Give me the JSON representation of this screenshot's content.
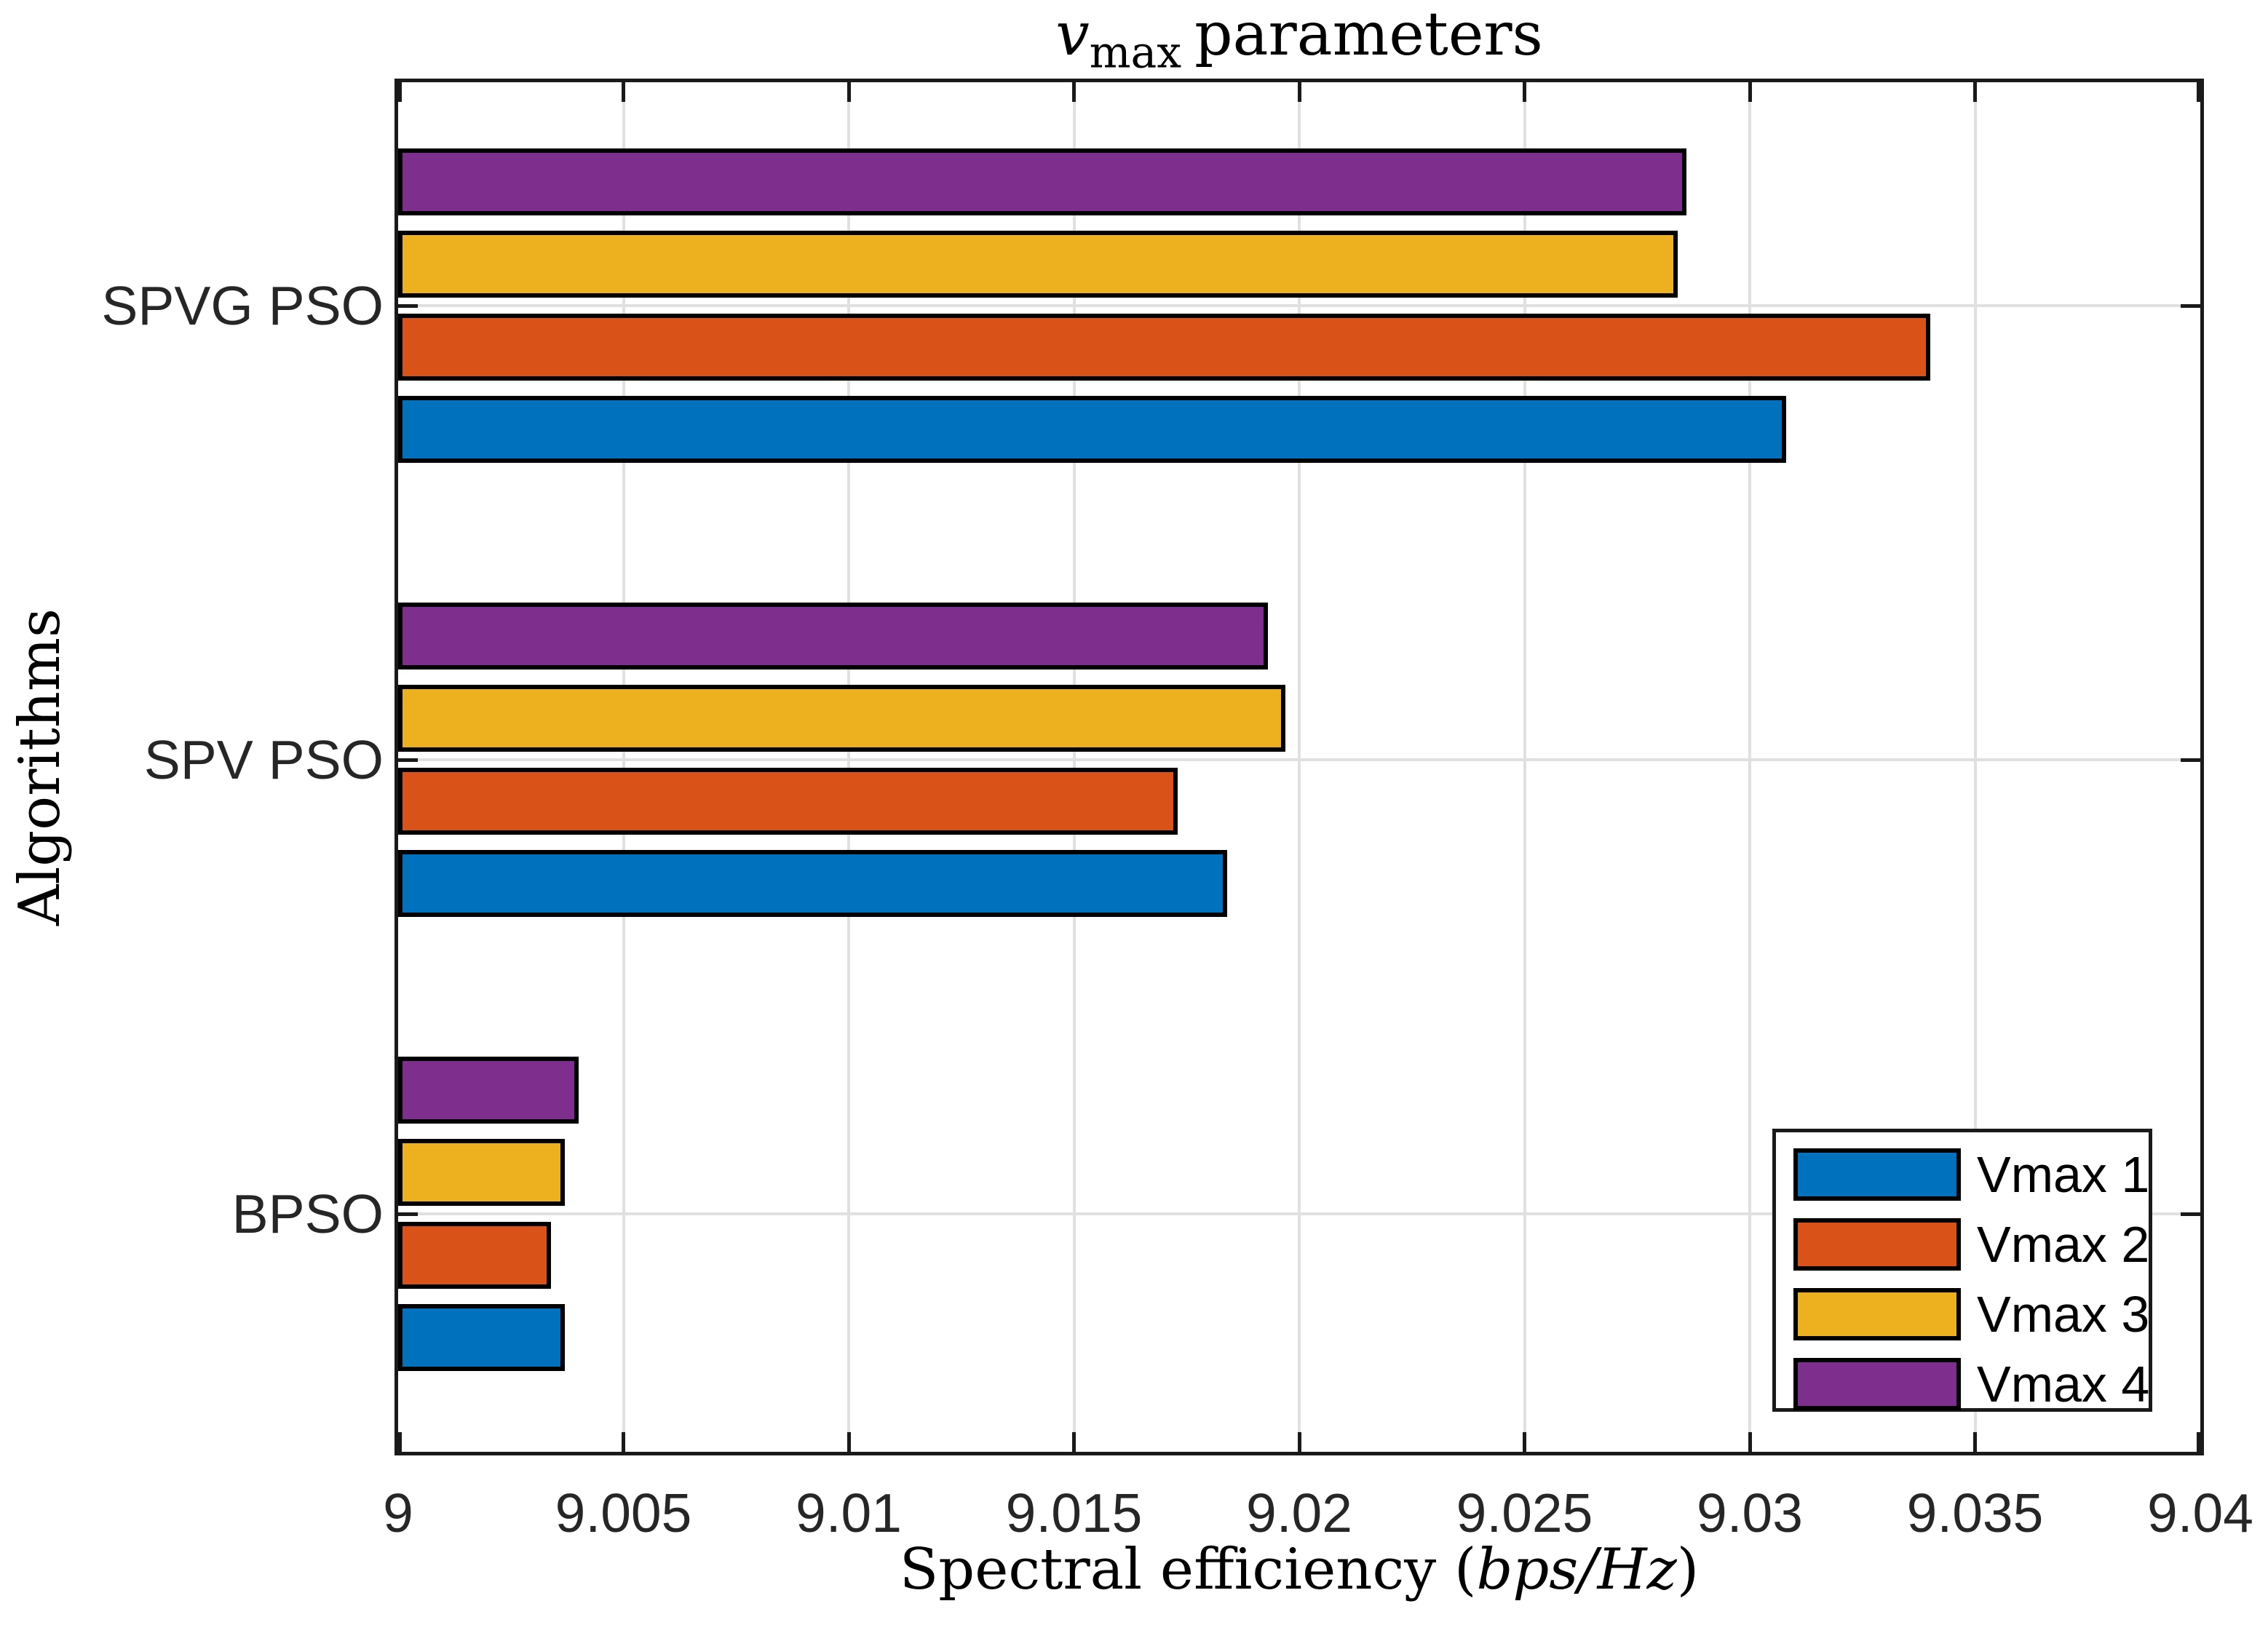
{
  "figure": {
    "background": "#ffffff",
    "axis_color": "#1a1a1a",
    "grid_color": "#e0e0e0",
    "bar_edge_color": "#000000"
  },
  "chart_data": {
    "type": "bar",
    "orientation": "horizontal",
    "title_parts": {
      "variable": "v",
      "subscript": "max",
      "rest": "parameters"
    },
    "xlabel_parts": {
      "prefix": "Spectral efficiency (",
      "math": "bps/Hz",
      "suffix": ")"
    },
    "ylabel": "Algorithms",
    "categories": [
      "SPVG PSO",
      "SPV PSO",
      "BPSO"
    ],
    "series": [
      {
        "name": "Vmax 1",
        "color": "#0072BD",
        "values": [
          9.0308,
          9.0184,
          9.0037
        ]
      },
      {
        "name": "Vmax 2",
        "color": "#D95319",
        "values": [
          9.034,
          9.0173,
          9.0034
        ]
      },
      {
        "name": "Vmax 3",
        "color": "#EDB120",
        "values": [
          9.0284,
          9.0197,
          9.0037
        ]
      },
      {
        "name": "Vmax 4",
        "color": "#7E2F8E",
        "values": [
          9.0286,
          9.0193,
          9.004
        ]
      }
    ],
    "series_order_within_group_bottom_to_top": [
      "Vmax 1",
      "Vmax 2",
      "Vmax 3",
      "Vmax 4"
    ],
    "xlim": [
      9,
      9.04
    ],
    "xticks": [
      9,
      9.005,
      9.01,
      9.015,
      9.02,
      9.025,
      9.03,
      9.035,
      9.04
    ],
    "xtick_labels": [
      "9",
      "9.005",
      "9.01",
      "9.015",
      "9.02",
      "9.025",
      "9.03",
      "9.035",
      "9.04"
    ],
    "grid": true,
    "legend": {
      "position": "southeast",
      "entries": [
        "Vmax 1",
        "Vmax 2",
        "Vmax 3",
        "Vmax 4"
      ]
    }
  }
}
